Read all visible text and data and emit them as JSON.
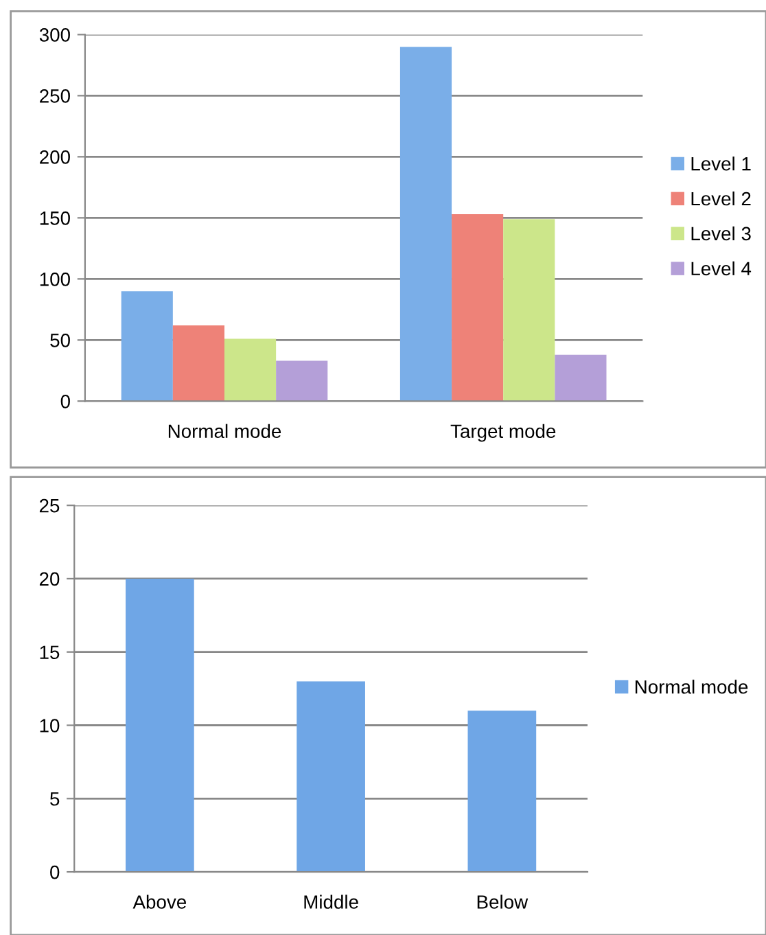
{
  "chart_data": [
    {
      "type": "bar",
      "categories": [
        "Normal mode",
        "Target mode"
      ],
      "series": [
        {
          "name": "Level 1",
          "color": "#7aaee8",
          "values": [
            90,
            290
          ]
        },
        {
          "name": "Level 2",
          "color": "#ee8278",
          "values": [
            62,
            153
          ]
        },
        {
          "name": "Level 3",
          "color": "#cce68a",
          "values": [
            51,
            149
          ]
        },
        {
          "name": "Level 4",
          "color": "#b49fd8",
          "values": [
            33,
            38
          ]
        }
      ],
      "ylim": [
        0,
        300
      ],
      "yticks": [
        0,
        50,
        100,
        150,
        200,
        250,
        300
      ],
      "grid": "y",
      "legend": "right"
    },
    {
      "type": "bar",
      "categories": [
        "Above",
        "Middle",
        "Below"
      ],
      "series": [
        {
          "name": "Normal mode",
          "color": "#6fa6e6",
          "values": [
            20,
            13,
            11
          ]
        }
      ],
      "ylim": [
        0,
        25
      ],
      "yticks": [
        0,
        5,
        10,
        15,
        20,
        25
      ],
      "grid": "y",
      "legend": "right"
    }
  ]
}
